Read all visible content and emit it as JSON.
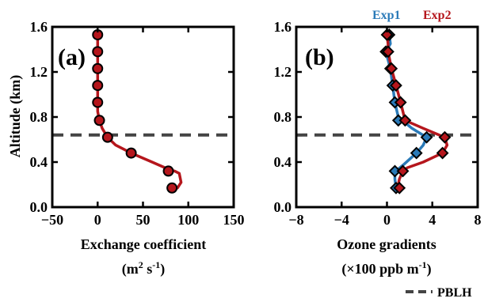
{
  "ylabel": "Altitude (km)",
  "chart_data": [
    {
      "type": "line",
      "panel_label": "(a)",
      "xlabel": "Exchange coefficient",
      "xlabel_units": {
        "base": "(m",
        "exp1": "2",
        "mid": " s",
        "exp2": "-1",
        "end": ")"
      },
      "xlim": [
        -50,
        150
      ],
      "ylim": [
        0,
        1.6
      ],
      "xticks": [
        -50,
        0,
        50,
        100,
        150
      ],
      "xtick_labels": [
        "−50",
        "0",
        "50",
        "100",
        "150"
      ],
      "yticks": [
        0,
        0.4,
        0.8,
        1.2,
        1.6
      ],
      "ytick_labels": [
        "0.0",
        "0.4",
        "0.8",
        "1.2",
        "1.6"
      ],
      "series": [
        {
          "color": "#b5161c",
          "line": {
            "x": [
              0,
              0,
              0,
              0,
              0,
              0,
              2,
              5,
              11,
              20,
              37,
              60,
              80,
              85,
              90,
              92,
              88
            ],
            "y": [
              1.53,
              1.38,
              1.23,
              1.08,
              0.93,
              0.85,
              0.77,
              0.7,
              0.62,
              0.55,
              0.48,
              0.4,
              0.33,
              0.32,
              0.3,
              0.22,
              0.17
            ]
          },
          "markers": {
            "x": [
              0,
              0,
              0,
              0,
              0,
              2,
              11,
              37,
              78,
              82
            ],
            "y": [
              1.53,
              1.38,
              1.23,
              1.08,
              0.93,
              0.77,
              0.62,
              0.48,
              0.32,
              0.17
            ]
          }
        }
      ],
      "hline": {
        "y": 0.64,
        "style": "dashed",
        "color": "#444444"
      }
    },
    {
      "type": "line",
      "panel_label": "(b)",
      "xlabel": "Ozone gradients",
      "xlabel_units": {
        "base": "(×100 ppb m",
        "exp": "-1",
        "end": ")"
      },
      "xlim": [
        -8,
        8
      ],
      "ylim": [
        0,
        1.6
      ],
      "xticks": [
        -8,
        -4,
        0,
        4,
        8
      ],
      "xtick_labels": [
        "−8",
        "−4",
        "0",
        "4",
        "8"
      ],
      "yticks": [
        0,
        0.4,
        0.8,
        1.2,
        1.6
      ],
      "ytick_labels": [
        "0.0",
        "0.4",
        "0.8",
        "1.2",
        "1.6"
      ],
      "series": [
        {
          "name": "Exp1",
          "color": "#2a7ab8",
          "line": {
            "x": [
              0.2,
              0.3,
              -0.1,
              0.3,
              0.5,
              0.7,
              1.0,
              2.2,
              3.5,
              3.2,
              2.6,
              1.5,
              0.9,
              0.7,
              0.7,
              0.8
            ],
            "y": [
              1.53,
              1.45,
              1.38,
              1.23,
              1.08,
              0.93,
              0.8,
              0.7,
              0.62,
              0.55,
              0.48,
              0.38,
              0.33,
              0.32,
              0.25,
              0.17
            ]
          },
          "markers": {
            "x": [
              0.2,
              -0.1,
              0.3,
              0.5,
              0.7,
              1.0,
              3.5,
              2.6,
              0.7,
              0.8
            ],
            "y": [
              1.53,
              1.38,
              1.23,
              1.08,
              0.93,
              0.77,
              0.62,
              0.48,
              0.32,
              0.17
            ]
          }
        },
        {
          "name": "Exp2",
          "color": "#b5161c",
          "line": {
            "x": [
              0.0,
              0.1,
              0.1,
              0.4,
              0.8,
              1.2,
              1.6,
              3.2,
              5.1,
              5.3,
              4.9,
              3.2,
              1.8,
              1.4,
              1.1,
              1.0,
              1.1
            ],
            "y": [
              1.53,
              1.45,
              1.38,
              1.23,
              1.08,
              0.93,
              0.77,
              0.7,
              0.62,
              0.55,
              0.48,
              0.4,
              0.35,
              0.32,
              0.25,
              0.2,
              0.17
            ]
          },
          "markers": {
            "x": [
              0.0,
              0.1,
              0.4,
              0.8,
              1.2,
              1.6,
              5.1,
              4.9,
              1.4,
              1.1
            ],
            "y": [
              1.53,
              1.38,
              1.23,
              1.08,
              0.93,
              0.77,
              0.62,
              0.48,
              0.32,
              0.17
            ]
          }
        }
      ],
      "hline": {
        "y": 0.64,
        "style": "dashed",
        "color": "#444444"
      }
    }
  ],
  "legend": {
    "top": [
      {
        "label": "Exp1",
        "color": "#2a7ab8"
      },
      {
        "label": "Exp2",
        "color": "#b5161c"
      }
    ],
    "bottom": {
      "label": "PBLH",
      "style": "dashed",
      "color": "#444444"
    }
  }
}
